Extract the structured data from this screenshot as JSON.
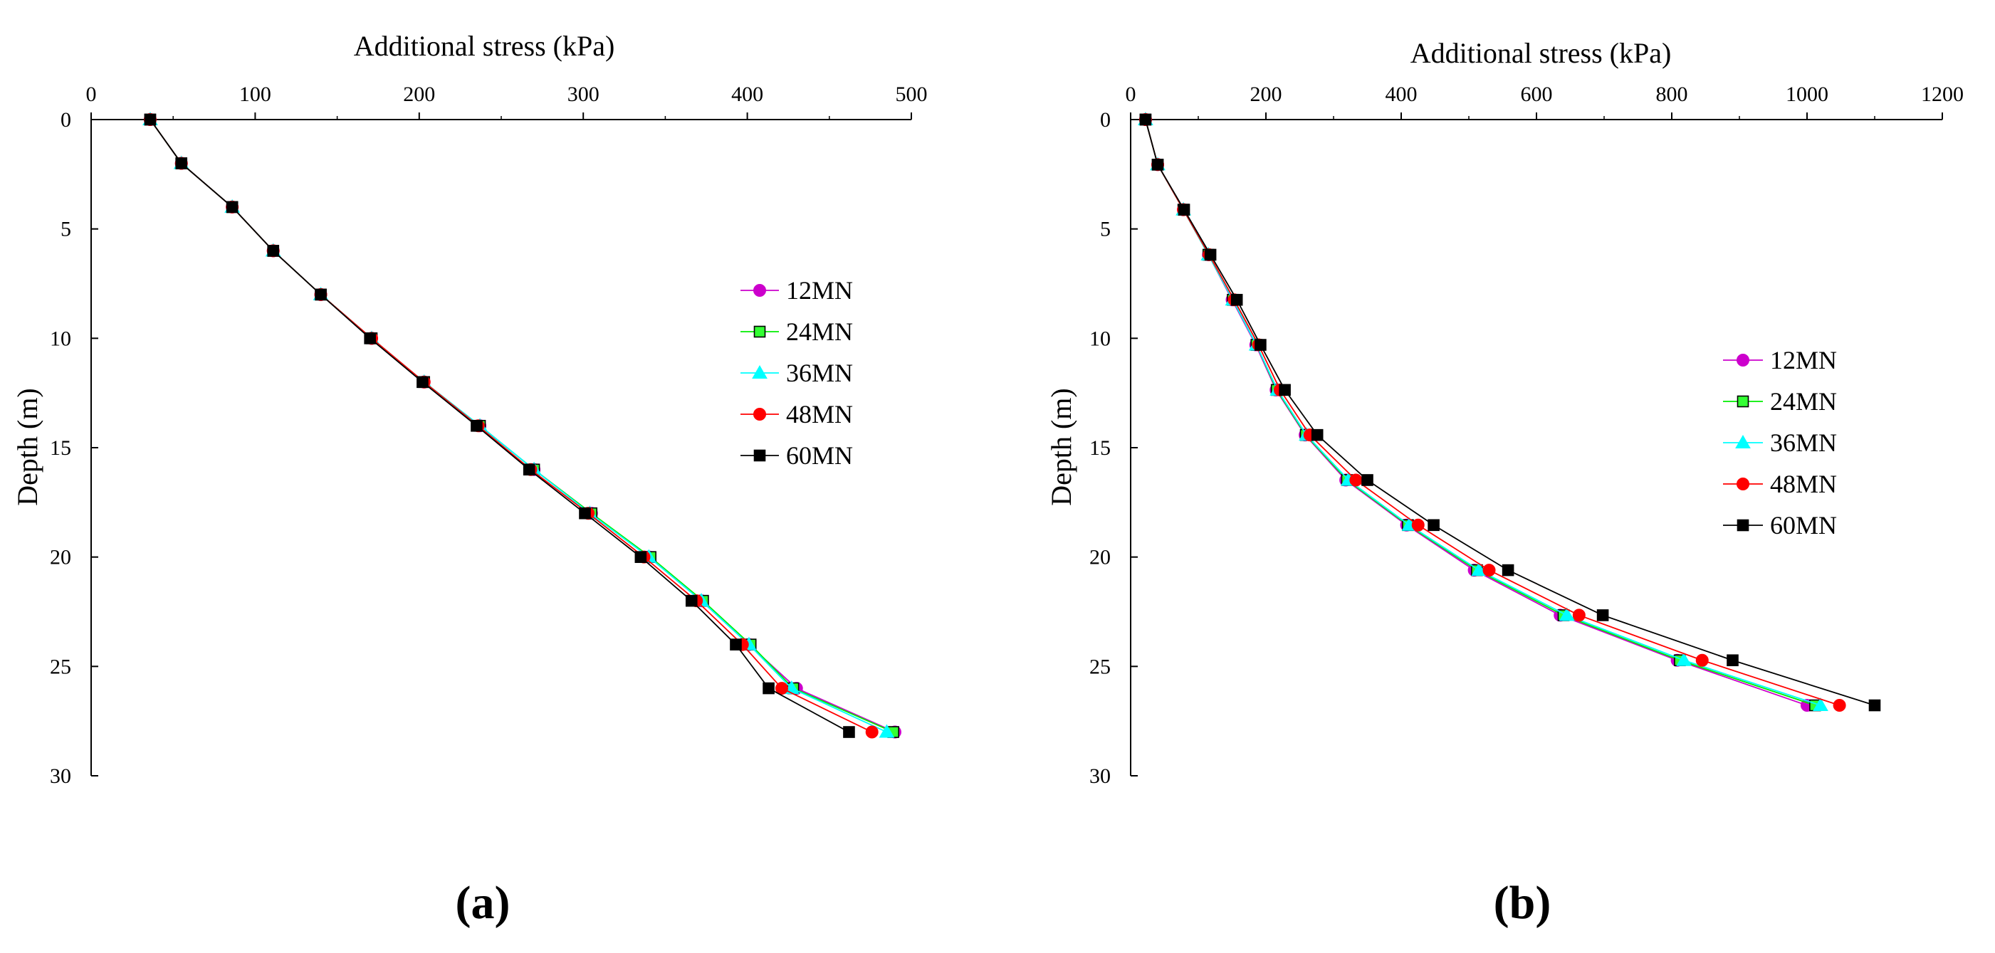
{
  "colors": {
    "12MN": "#cc00cc",
    "24MN": "#00ee00",
    "36MN": "#00ffff",
    "48MN": "#ff0000",
    "60MN": "#000000",
    "24MN_fill": "#33ff33"
  },
  "chart_data": [
    {
      "type": "line",
      "panel_label": "(a)",
      "title": "",
      "xlabel": "Additional stress (kPa)",
      "ylabel": "Depth (m)",
      "xlim": [
        0,
        500
      ],
      "ylim": [
        0,
        30
      ],
      "y_inverted": true,
      "x_ticks": [
        0,
        100,
        200,
        300,
        400,
        500
      ],
      "y_ticks": [
        0,
        5,
        10,
        15,
        20,
        25,
        30
      ],
      "legend_position": "right",
      "series": [
        {
          "name": "12MN",
          "marker": "circle",
          "x": [
            36,
            55,
            86,
            111,
            140,
            171,
            203,
            237,
            270,
            305,
            340,
            372,
            401,
            430,
            490
          ],
          "y": [
            0,
            2,
            4,
            6,
            8,
            10,
            12,
            14,
            16,
            18,
            20,
            22,
            24,
            26,
            28
          ]
        },
        {
          "name": "24MN",
          "marker": "square",
          "x": [
            36,
            55,
            86,
            111,
            140,
            171,
            203,
            237,
            270,
            305,
            341,
            373,
            402,
            428,
            489
          ],
          "y": [
            0,
            2,
            4,
            6,
            8,
            10,
            12,
            14,
            16,
            18,
            20,
            22,
            24,
            26,
            28
          ]
        },
        {
          "name": "36MN",
          "marker": "triangle",
          "x": [
            36,
            55,
            86,
            111,
            140,
            171,
            203,
            237,
            270,
            304,
            340,
            372,
            401,
            427,
            485
          ],
          "y": [
            0,
            2,
            4,
            6,
            8,
            10,
            12,
            14,
            16,
            18,
            20,
            22,
            24,
            26,
            28
          ]
        },
        {
          "name": "48MN",
          "marker": "circle",
          "x": [
            36,
            55,
            86,
            111,
            140,
            171,
            203,
            236,
            268,
            303,
            337,
            369,
            397,
            421,
            476
          ],
          "y": [
            0,
            2,
            4,
            6,
            8,
            10,
            12,
            14,
            16,
            18,
            20,
            22,
            24,
            26,
            28
          ]
        },
        {
          "name": "60MN",
          "marker": "square",
          "x": [
            36,
            55,
            86,
            111,
            140,
            170,
            202,
            235,
            267,
            301,
            335,
            366,
            393,
            413,
            462
          ],
          "y": [
            0,
            2,
            4,
            6,
            8,
            10,
            12,
            14,
            16,
            18,
            20,
            22,
            24,
            26,
            28
          ]
        }
      ]
    },
    {
      "type": "line",
      "panel_label": "(b)",
      "title": "",
      "xlabel": "Additional stress  (kPa)",
      "ylabel": "Depth (m)",
      "xlim": [
        0,
        1200
      ],
      "ylim": [
        0,
        30
      ],
      "y_inverted": true,
      "x_ticks": [
        0,
        200,
        400,
        600,
        800,
        1000,
        1200
      ],
      "y_ticks": [
        0,
        5,
        10,
        15,
        20,
        25,
        30
      ],
      "legend_position": "right",
      "series": [
        {
          "name": "12MN",
          "marker": "circle",
          "x": [
            22,
            40,
            78,
            115,
            150,
            185,
            215,
            258,
            318,
            408,
            508,
            635,
            808,
            1000
          ],
          "y": [
            0,
            2.06,
            4.12,
            6.18,
            8.24,
            10.3,
            12.36,
            14.42,
            16.48,
            18.54,
            20.6,
            22.66,
            24.72,
            26.78
          ]
        },
        {
          "name": "24MN",
          "marker": "square",
          "x": [
            22,
            40,
            78,
            115,
            151,
            186,
            216,
            259,
            320,
            410,
            512,
            640,
            812,
            1012
          ],
          "y": [
            0,
            2.06,
            4.12,
            6.18,
            8.24,
            10.3,
            12.36,
            14.42,
            16.48,
            18.54,
            20.6,
            22.66,
            24.72,
            26.78
          ]
        },
        {
          "name": "36MN",
          "marker": "triangle",
          "x": [
            22,
            40,
            78,
            115,
            151,
            186,
            217,
            260,
            322,
            412,
            515,
            645,
            818,
            1020
          ],
          "y": [
            0,
            2.06,
            4.12,
            6.18,
            8.24,
            10.3,
            12.36,
            14.42,
            16.48,
            18.54,
            20.6,
            22.66,
            24.72,
            26.78
          ]
        },
        {
          "name": "48MN",
          "marker": "circle",
          "x": [
            22,
            40,
            78,
            116,
            153,
            189,
            221,
            265,
            333,
            425,
            530,
            663,
            845,
            1048
          ],
          "y": [
            0,
            2.06,
            4.12,
            6.18,
            8.24,
            10.3,
            12.36,
            14.42,
            16.48,
            18.54,
            20.6,
            22.66,
            24.72,
            26.78
          ]
        },
        {
          "name": "60MN",
          "marker": "square",
          "x": [
            22,
            40,
            79,
            118,
            157,
            192,
            228,
            276,
            350,
            448,
            558,
            698,
            890,
            1100
          ],
          "y": [
            0,
            2.06,
            4.12,
            6.18,
            8.24,
            10.3,
            12.36,
            14.42,
            16.48,
            18.54,
            20.6,
            22.66,
            24.72,
            26.78
          ]
        }
      ]
    }
  ]
}
